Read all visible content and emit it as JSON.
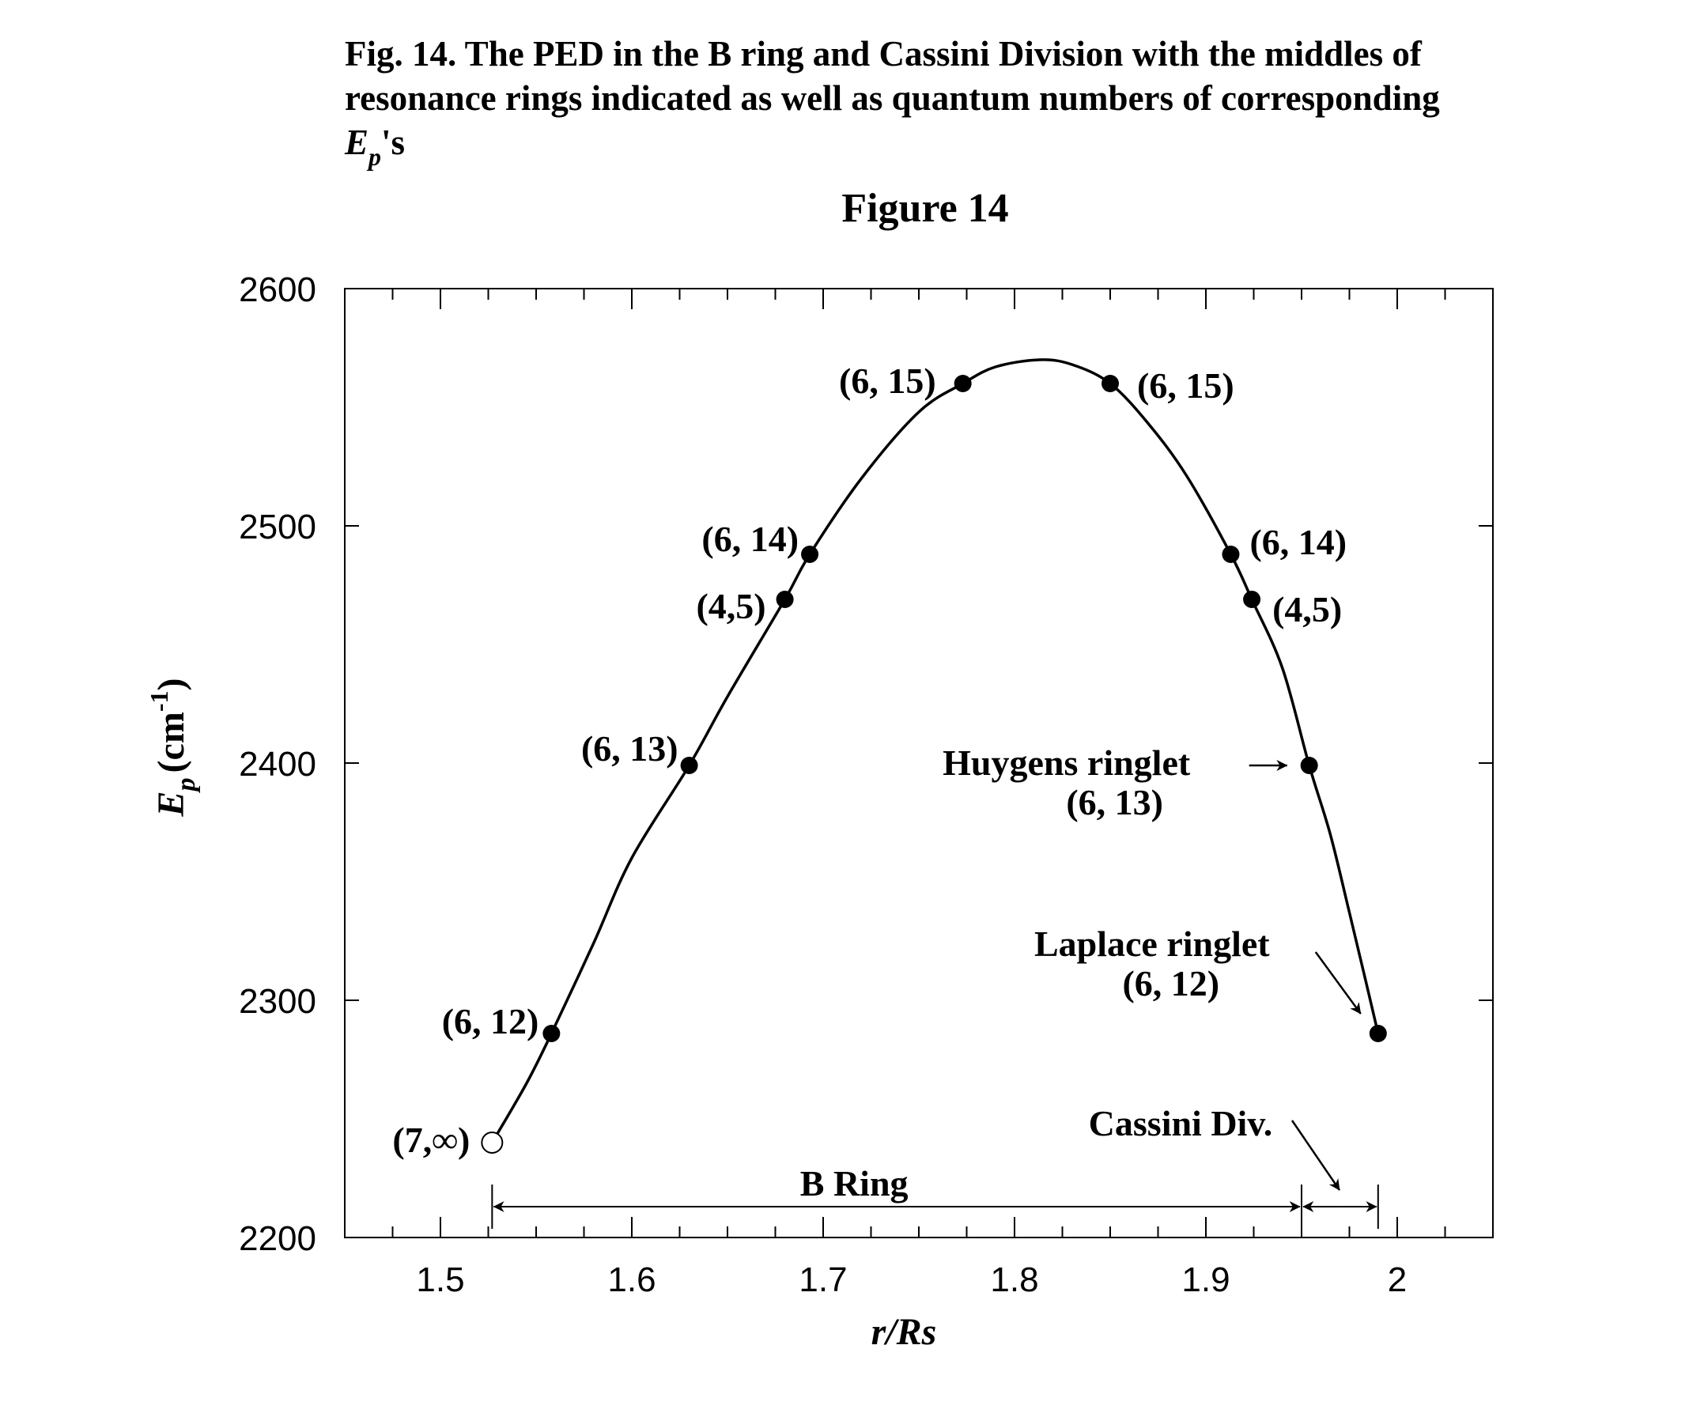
{
  "caption": {
    "line1": "Fig. 14. The PED in the B ring and Cassini Division with the middles of",
    "line2": "resonance rings indicated as well as quantum numbers of corresponding",
    "line3_E": "E",
    "line3_sub": "p",
    "line3_suffix": "'s"
  },
  "chart_data": {
    "type": "line",
    "title": "Figure 14",
    "xlabel": "r/Rs",
    "ylabel": {
      "base": "E",
      "sub": "p",
      "unit": "(cm",
      "sup": "-1",
      "close": ")"
    },
    "xlim": [
      1.45,
      2.05
    ],
    "ylim": [
      2200,
      2600
    ],
    "xticks": [
      1.5,
      1.6,
      1.7,
      1.8,
      1.9,
      2
    ],
    "xtick_labels": [
      "1.5",
      "1.6",
      "1.7",
      "1.8",
      "1.9",
      "2"
    ],
    "yticks": [
      2200,
      2300,
      2400,
      2500,
      2600
    ],
    "ytick_labels": [
      "2200",
      "2300",
      "2400",
      "2500",
      "2600"
    ],
    "grid": false,
    "curve": {
      "x": [
        1.527,
        1.545,
        1.558,
        1.58,
        1.6,
        1.63,
        1.65,
        1.68,
        1.693,
        1.72,
        1.75,
        1.773,
        1.79,
        1.813,
        1.83,
        1.85,
        1.87,
        1.89,
        1.913,
        1.924,
        1.94,
        1.954,
        1.965,
        1.975,
        1.983,
        1.99
      ],
      "y": [
        2240,
        2265,
        2286,
        2324,
        2360,
        2399,
        2428,
        2469,
        2488,
        2520,
        2548,
        2560,
        2567,
        2570,
        2568,
        2560,
        2543,
        2521,
        2488,
        2469,
        2440,
        2399,
        2370,
        2337,
        2310,
        2286
      ]
    },
    "points": [
      {
        "x": 1.527,
        "y": 2240,
        "label": "(7,∞)",
        "open": true
      },
      {
        "x": 1.558,
        "y": 2286,
        "label": "(6, 12)",
        "open": false
      },
      {
        "x": 1.63,
        "y": 2399,
        "label": "(6, 13)",
        "open": false
      },
      {
        "x": 1.68,
        "y": 2469,
        "label": "(4,5)",
        "open": false
      },
      {
        "x": 1.693,
        "y": 2488,
        "label": "(6, 14)",
        "open": false
      },
      {
        "x": 1.773,
        "y": 2560,
        "label": "(6, 15)",
        "open": false
      },
      {
        "x": 1.85,
        "y": 2560,
        "label": "(6, 15)",
        "open": false
      },
      {
        "x": 1.913,
        "y": 2488,
        "label": "(6, 14)",
        "open": false
      },
      {
        "x": 1.924,
        "y": 2469,
        "label": "(4,5)",
        "open": false
      },
      {
        "x": 1.954,
        "y": 2399,
        "label": "Huygens ringlet",
        "label2": "(6, 13)",
        "open": false
      },
      {
        "x": 1.99,
        "y": 2286,
        "label": "Laplace ringlet",
        "label2": "(6, 12)",
        "open": false
      }
    ],
    "annotations": {
      "b_ring": "B Ring",
      "cassini": "Cassini Div."
    },
    "b_ring_span": [
      1.527,
      1.95
    ],
    "cassini_span": [
      1.95,
      1.99
    ]
  }
}
